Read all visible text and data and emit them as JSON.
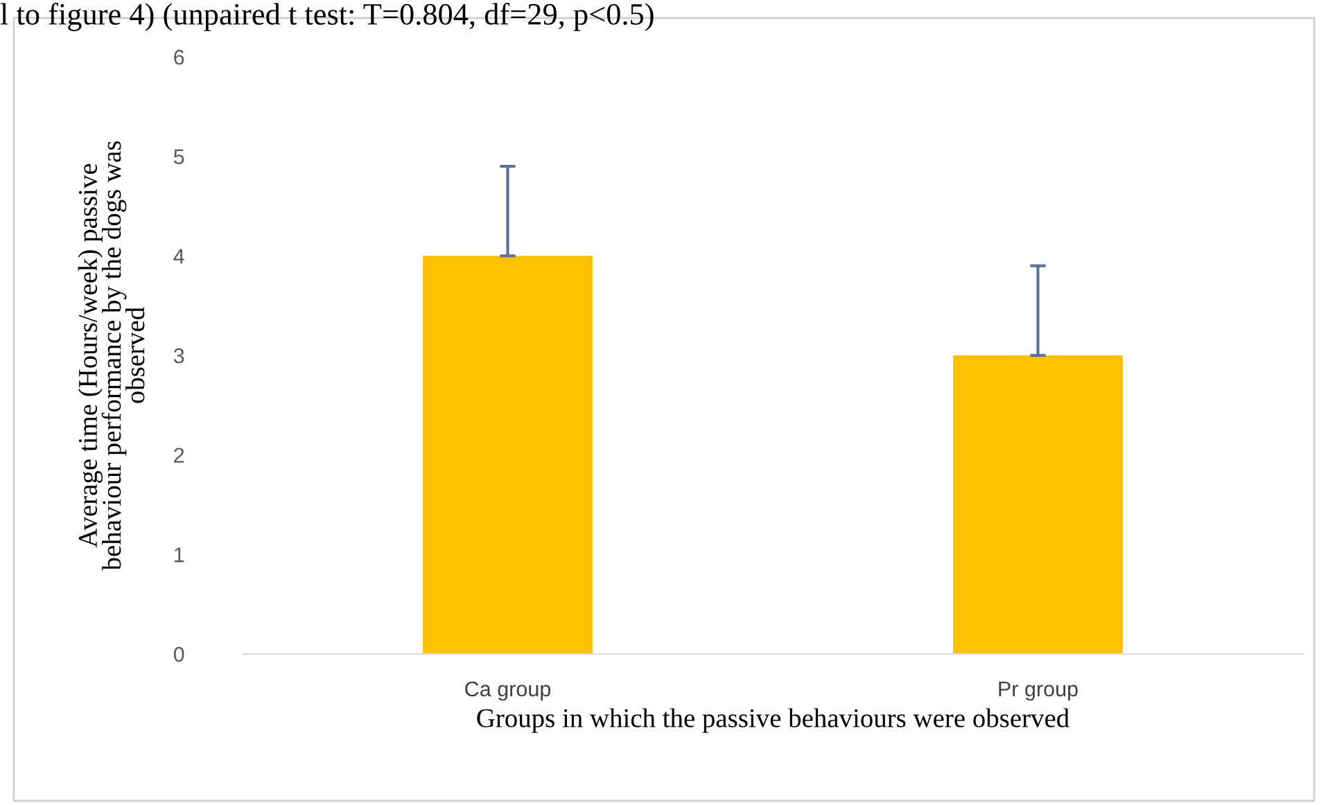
{
  "chart_data": {
    "type": "bar",
    "categories": [
      "Ca group",
      "Pr group"
    ],
    "values": [
      4,
      3
    ],
    "errors": [
      [
        4,
        4.9
      ],
      [
        3,
        3.9
      ]
    ],
    "color": "#ffc000",
    "ylim": [
      0,
      6
    ],
    "yticks": [
      0,
      1,
      2,
      3,
      4,
      5,
      6
    ],
    "xlabel": "Groups in which the passive behaviours were observed",
    "ylabel": "Average time (Hours/week) passive\nbehaviour performance by the dogs was\nobserved",
    "annotations": [
      "l to figure 4) (unpaired t test: T=0.804, df=29, p<0.5)"
    ],
    "grid": false
  }
}
